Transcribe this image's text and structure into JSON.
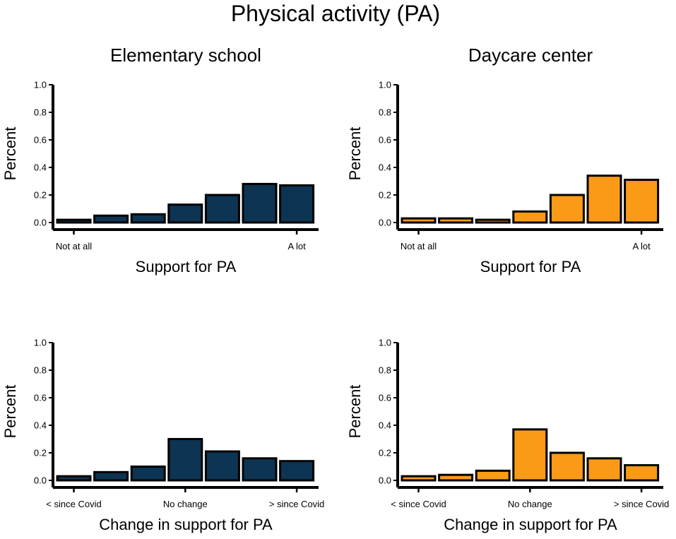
{
  "figure_title": "Physical activity (PA)",
  "colors": {
    "elementary": "#0d3452",
    "daycare": "#fb9a16",
    "outline": "#000000"
  },
  "chart_data": [
    {
      "type": "bar",
      "panel": "elementary-support",
      "title": "Elementary school",
      "xlabel": "Support for PA",
      "ylabel": "Percent",
      "ylim": [
        0,
        1.0
      ],
      "yticks": [
        "0.0",
        "0.2",
        "0.4",
        "0.6",
        "0.8",
        "1.0"
      ],
      "tick_labels": [
        {
          "index": 0,
          "text": "Not at all"
        },
        {
          "index": 6,
          "text": "A lot"
        }
      ],
      "values": [
        0.02,
        0.05,
        0.06,
        0.13,
        0.2,
        0.28,
        0.27
      ],
      "color_key": "elementary"
    },
    {
      "type": "bar",
      "panel": "daycare-support",
      "title": "Daycare center",
      "xlabel": "Support for PA",
      "ylabel": "Percent",
      "ylim": [
        0,
        1.0
      ],
      "yticks": [
        "0.0",
        "0.2",
        "0.4",
        "0.6",
        "0.8",
        "1.0"
      ],
      "tick_labels": [
        {
          "index": 0,
          "text": "Not at all"
        },
        {
          "index": 6,
          "text": "A lot"
        }
      ],
      "values": [
        0.03,
        0.03,
        0.02,
        0.08,
        0.2,
        0.34,
        0.31
      ],
      "color_key": "daycare"
    },
    {
      "type": "bar",
      "panel": "elementary-change",
      "title": "",
      "xlabel": "Change in support for PA",
      "ylabel": "Percent",
      "ylim": [
        0,
        1.0
      ],
      "yticks": [
        "0.0",
        "0.2",
        "0.4",
        "0.6",
        "0.8",
        "1.0"
      ],
      "tick_labels": [
        {
          "index": 0,
          "text": "< since Covid"
        },
        {
          "index": 3,
          "text": "No change"
        },
        {
          "index": 6,
          "text": "> since Covid"
        }
      ],
      "values": [
        0.03,
        0.06,
        0.1,
        0.3,
        0.21,
        0.16,
        0.14
      ],
      "color_key": "elementary"
    },
    {
      "type": "bar",
      "panel": "daycare-change",
      "title": "",
      "xlabel": "Change in support for PA",
      "ylabel": "Percent",
      "ylim": [
        0,
        1.0
      ],
      "yticks": [
        "0.0",
        "0.2",
        "0.4",
        "0.6",
        "0.8",
        "1.0"
      ],
      "tick_labels": [
        {
          "index": 0,
          "text": "< since Covid"
        },
        {
          "index": 3,
          "text": "No change"
        },
        {
          "index": 6,
          "text": "> since Covid"
        }
      ],
      "values": [
        0.03,
        0.04,
        0.07,
        0.37,
        0.2,
        0.16,
        0.11
      ],
      "color_key": "daycare"
    }
  ]
}
